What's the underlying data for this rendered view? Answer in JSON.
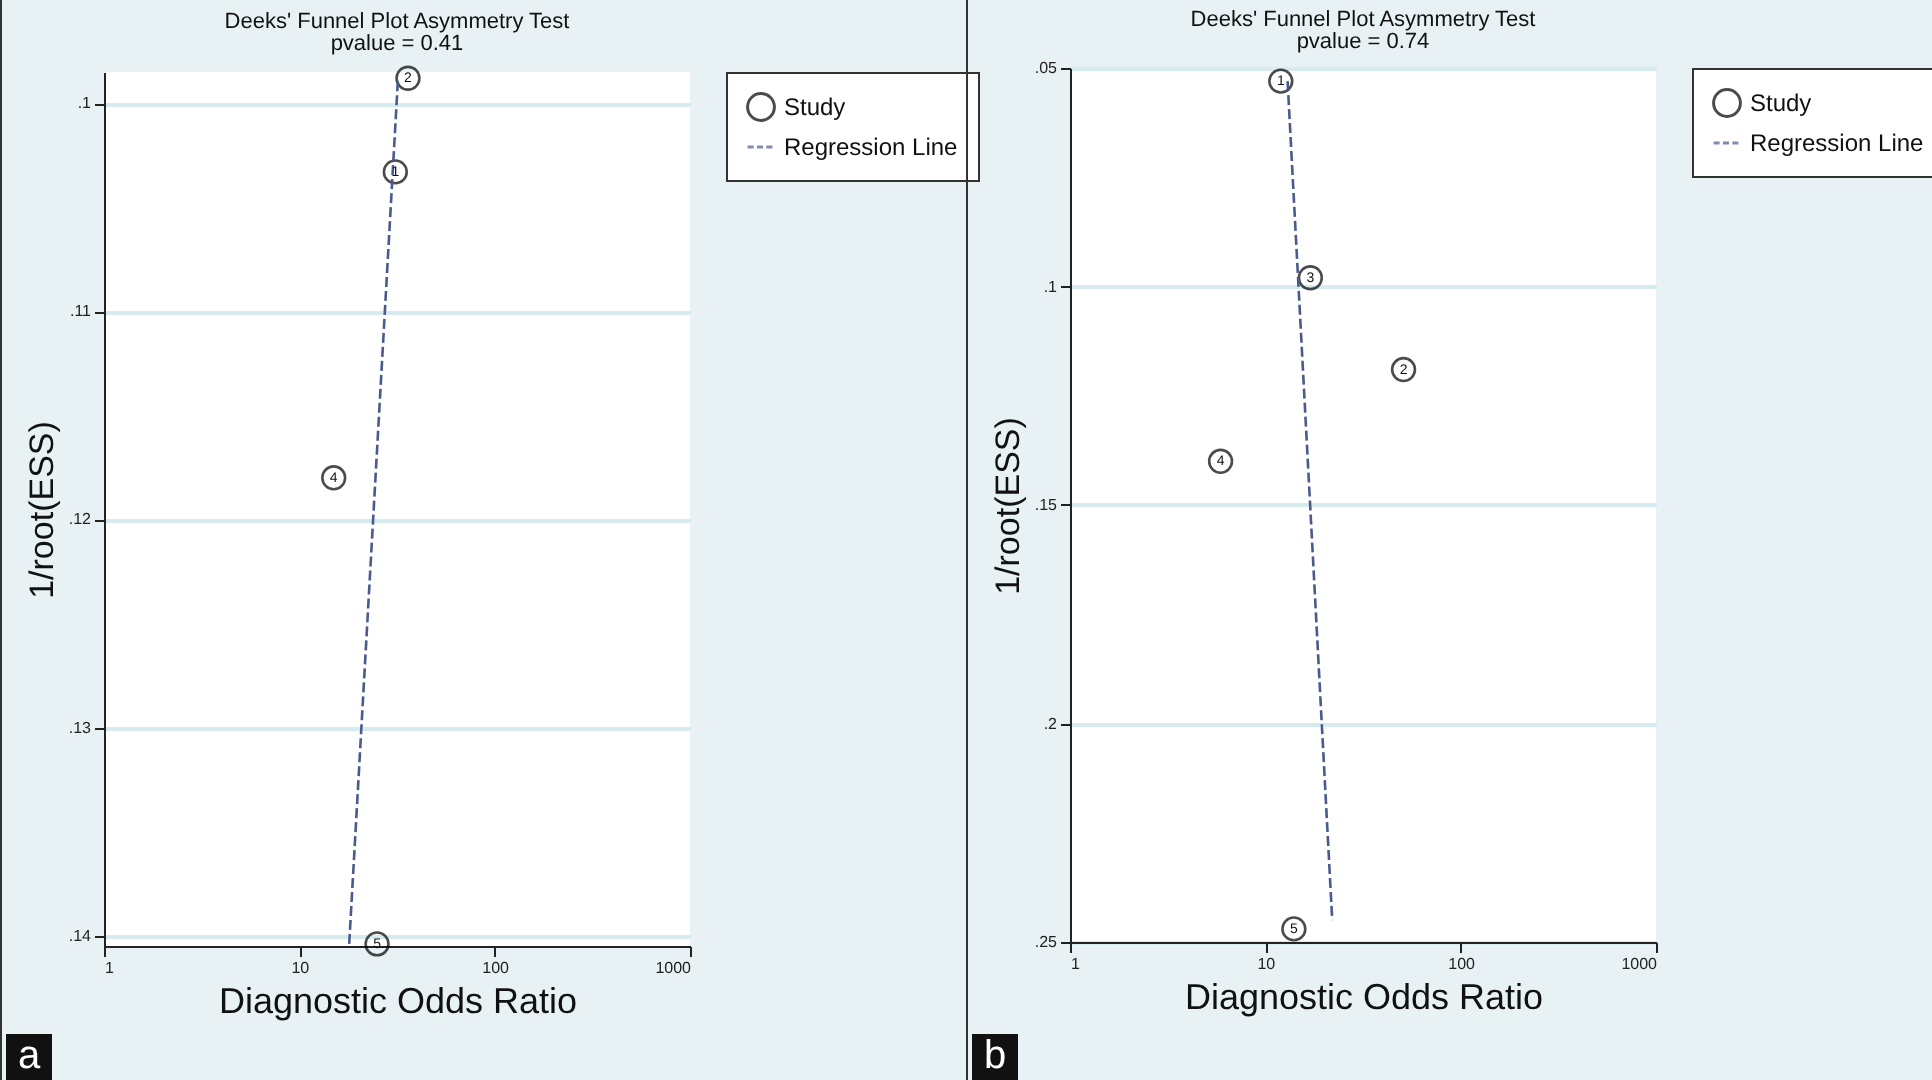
{
  "chart_data": [
    {
      "type": "scatter",
      "title": "Deeks' Funnel Plot Asymmetry Test",
      "subtitle": "pvalue =  0.41",
      "xlabel": "Diagnostic Odds Ratio",
      "ylabel": "1/root(ESS)",
      "log": "x",
      "xlim": [
        1,
        1000
      ],
      "xticks": [
        1,
        10,
        100,
        1000
      ],
      "ylim": [
        0.1405,
        0.0985
      ],
      "yticks": [
        {
          "value": 0.1,
          "label": ".1"
        },
        {
          "value": 0.11,
          "label": ".11"
        },
        {
          "value": 0.12,
          "label": ".12"
        },
        {
          "value": 0.13,
          "label": ".13"
        },
        {
          "value": 0.14,
          "label": ".14"
        }
      ],
      "grid": "y",
      "legend": "right",
      "series": [
        {
          "name": "Study",
          "marker": "circle",
          "color": "#000000",
          "x": [
            31,
            36,
            15,
            25
          ],
          "values": [
            0.1033,
            0.0988,
            0.118,
            0.1404
          ]
        },
        {
          "name": "Regression Line",
          "type": "line",
          "marker": "none",
          "line_style": "dashed",
          "color": "#4a5a8c",
          "x": [
            32,
            18
          ],
          "values": [
            0.0988,
            0.1404
          ]
        }
      ],
      "annotations": [
        {
          "text": "1",
          "x": 31,
          "y": 0.1033
        },
        {
          "text": "2",
          "x": 36,
          "y": 0.0988
        },
        {
          "text": "4",
          "x": 15,
          "y": 0.118
        },
        {
          "text": "5",
          "x": 25,
          "y": 0.1404
        },
        "a"
      ]
    },
    {
      "type": "scatter",
      "title": "Deeks' Funnel Plot Asymmetry Test",
      "subtitle": "pvalue =  0.74",
      "xlabel": "Diagnostic Odds Ratio",
      "ylabel": "1/root(ESS)",
      "log": "x",
      "xlim": [
        1,
        1000
      ],
      "xticks": [
        1,
        10,
        100,
        1000
      ],
      "ylim": [
        0.25,
        0.05
      ],
      "yticks": [
        {
          "value": 0.05,
          "label": ".05"
        },
        {
          "value": 0.1,
          "label": ".1"
        },
        {
          "value": 0.15,
          "label": ".15"
        },
        {
          "value": 0.2,
          "label": ".2"
        },
        {
          "value": 0.25,
          "label": ".25"
        }
      ],
      "grid": "y",
      "legend": "right",
      "series": [
        {
          "name": "Study",
          "marker": "circle",
          "color": "#000000",
          "x": [
            12,
            51,
            17,
            5.9,
            14
          ],
          "values": [
            0.053,
            0.119,
            0.098,
            0.14,
            0.247
          ]
        },
        {
          "name": "Regression Line",
          "type": "line",
          "marker": "none",
          "line_style": "dashed",
          "color": "#4a5a8c",
          "x": [
            13,
            22
          ],
          "values": [
            0.053,
            0.245
          ]
        }
      ],
      "annotations": [
        {
          "text": "1",
          "x": 12,
          "y": 0.053
        },
        {
          "text": "2",
          "x": 51,
          "y": 0.119
        },
        {
          "text": "3",
          "x": 17,
          "y": 0.098
        },
        {
          "text": "4",
          "x": 5.9,
          "y": 0.14
        },
        {
          "text": "5",
          "x": 14,
          "y": 0.247
        },
        "b"
      ]
    }
  ]
}
